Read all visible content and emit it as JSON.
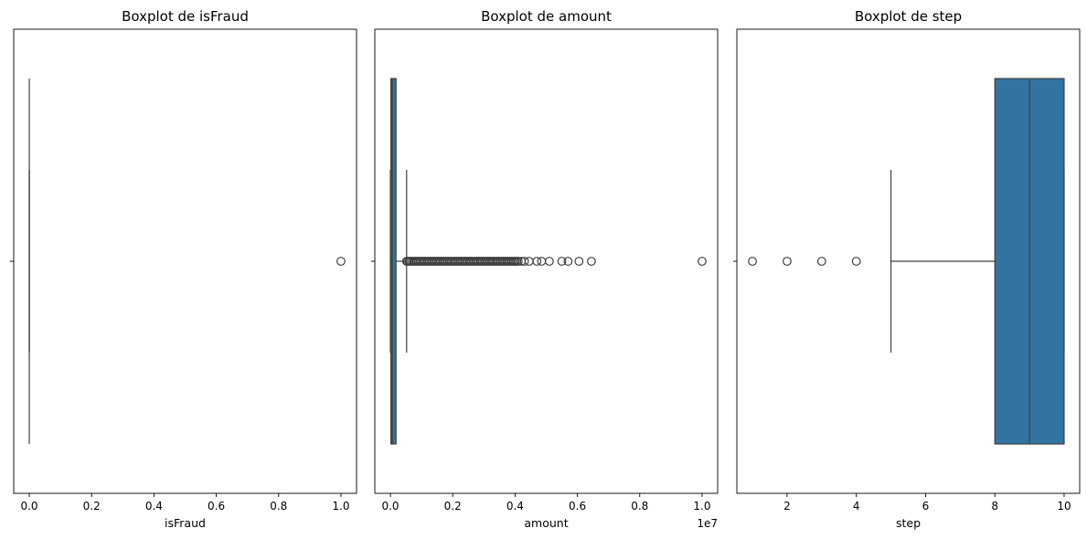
{
  "chart_data": [
    {
      "type": "boxplot",
      "title": "Boxplot de isFraud",
      "xlabel": "isFraud",
      "xlim": [
        -0.05,
        1.05
      ],
      "xticks": [
        0.0,
        0.2,
        0.4,
        0.6,
        0.8,
        1.0
      ],
      "tick_labels": [
        "0.0",
        "0.2",
        "0.4",
        "0.6",
        "0.8",
        "1.0"
      ],
      "offset_label": "",
      "box": {
        "whisker_low": 0,
        "q1": 0,
        "median": 0,
        "q3": 0,
        "whisker_high": 0
      },
      "outliers": [
        1.0
      ],
      "color": "#3274a1"
    },
    {
      "type": "boxplot",
      "title": "Boxplot de amount",
      "xlabel": "amount",
      "xlim": [
        -0.05,
        1.05
      ],
      "xticks": [
        0.0,
        0.2,
        0.4,
        0.6,
        0.8,
        1.0
      ],
      "tick_labels": [
        "0.0",
        "0.2",
        "0.4",
        "0.6",
        "0.8",
        "1.0"
      ],
      "offset_label": "1e7",
      "box": {
        "whisker_low": 0.0,
        "q1": 0.0015,
        "median": 0.006,
        "q3": 0.018,
        "whisker_high": 0.052
      },
      "outliers": [
        0.052,
        0.055,
        0.06,
        0.065,
        0.07,
        0.075,
        0.08,
        0.085,
        0.09,
        0.095,
        0.1,
        0.105,
        0.11,
        0.115,
        0.12,
        0.125,
        0.13,
        0.135,
        0.14,
        0.145,
        0.15,
        0.155,
        0.16,
        0.165,
        0.17,
        0.175,
        0.18,
        0.185,
        0.19,
        0.195,
        0.2,
        0.205,
        0.21,
        0.215,
        0.22,
        0.225,
        0.23,
        0.235,
        0.24,
        0.245,
        0.25,
        0.255,
        0.26,
        0.265,
        0.27,
        0.275,
        0.28,
        0.285,
        0.29,
        0.295,
        0.3,
        0.305,
        0.31,
        0.315,
        0.32,
        0.325,
        0.33,
        0.335,
        0.34,
        0.345,
        0.35,
        0.355,
        0.36,
        0.365,
        0.37,
        0.375,
        0.38,
        0.385,
        0.39,
        0.395,
        0.4,
        0.405,
        0.41,
        0.42,
        0.43,
        0.445,
        0.47,
        0.485,
        0.51,
        0.55,
        0.57,
        0.605,
        0.645,
        1.0
      ],
      "color": "#3274a1"
    },
    {
      "type": "boxplot",
      "title": "Boxplot de step",
      "xlabel": "step",
      "xlim": [
        0.55,
        10.45
      ],
      "xticks": [
        2,
        4,
        6,
        8,
        10
      ],
      "tick_labels": [
        "2",
        "4",
        "6",
        "8",
        "10"
      ],
      "offset_label": "",
      "box": {
        "whisker_low": 5,
        "q1": 8,
        "median": 9,
        "q3": 10,
        "whisker_high": 10
      },
      "outliers": [
        1,
        2,
        3,
        4
      ],
      "color": "#3274a1"
    }
  ]
}
